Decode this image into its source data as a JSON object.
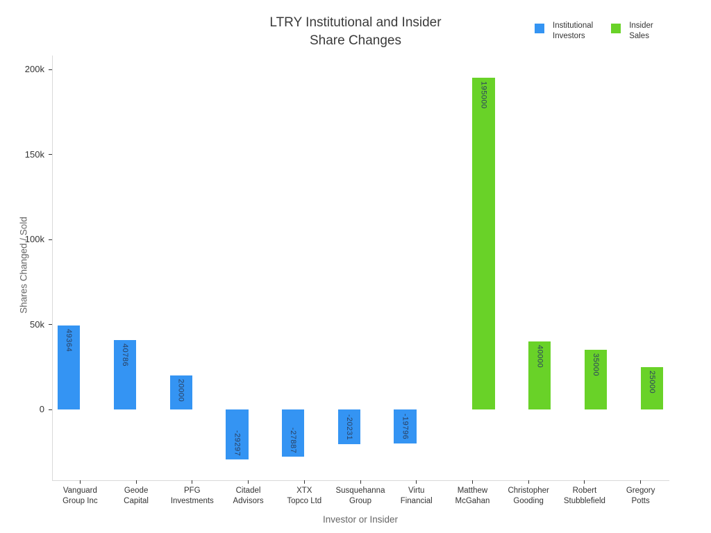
{
  "title": {
    "line1": "LTRY Institutional and Insider",
    "line2": "Share Changes"
  },
  "legend": {
    "items": [
      {
        "name": "institutional-investors",
        "label": "Institutional\nInvestors",
        "color": "#3494F3"
      },
      {
        "name": "insider-sales",
        "label": "Insider\nSales",
        "color": "#69D228"
      }
    ]
  },
  "chart_data": {
    "type": "bar",
    "title": "LTRY Institutional and Insider Share Changes",
    "xlabel": "Investor or Insider",
    "ylabel": "Shares Changed / Sold",
    "categories": [
      "Vanguard Group Inc",
      "Geode Capital",
      "PFG Investments",
      "Citadel Advisors",
      "XTX Topco Ltd",
      "Susquehanna Group",
      "Virtu Financial",
      "Matthew McGahan",
      "Christopher Gooding",
      "Robert Stubblefield",
      "Gregory Potts"
    ],
    "xtick_labels": [
      "Vanguard\nGroup Inc",
      "Geode\nCapital",
      "PFG\nInvestments",
      "Citadel\nAdvisors",
      "XTX\nTopco Ltd",
      "Susquehanna\nGroup",
      "Virtu\nFinancial",
      "Matthew\nMcGahan",
      "Christopher\nGooding",
      "Robert\nStubblefield",
      "Gregory\nPotts"
    ],
    "series": [
      {
        "name": "Institutional Investors",
        "color": "#3494F3",
        "values": [
          49364,
          40786,
          20000,
          -29297,
          -27887,
          -20231,
          -19796,
          null,
          null,
          null,
          null
        ]
      },
      {
        "name": "Insider Sales",
        "color": "#69D228",
        "values": [
          null,
          null,
          null,
          null,
          null,
          null,
          null,
          195000,
          40000,
          35000,
          25000
        ]
      }
    ],
    "yticks": [
      0,
      50000,
      100000,
      150000,
      200000
    ],
    "ytick_labels": [
      "0",
      "50k",
      "100k",
      "150k",
      "200k"
    ],
    "ylim": [
      -41600,
      208200
    ],
    "grid": false,
    "legend_position": "top-right",
    "bar_value_labels_inside": true
  }
}
